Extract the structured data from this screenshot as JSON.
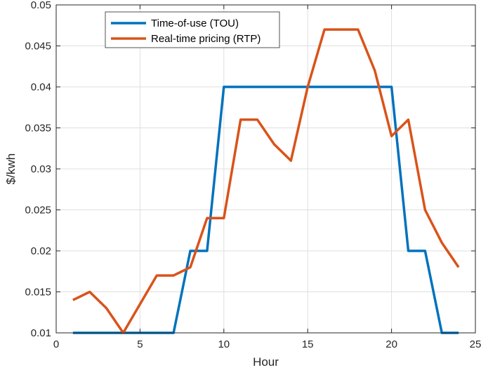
{
  "chart_data": {
    "type": "line",
    "title": "",
    "xlabel": "Hour",
    "ylabel": "$/kwh",
    "xlim": [
      0,
      25
    ],
    "ylim": [
      0.01,
      0.05
    ],
    "xticks": [
      0,
      5,
      10,
      15,
      20,
      25
    ],
    "xtick_labels": [
      "0",
      "5",
      "10",
      "15",
      "20",
      "25"
    ],
    "yticks": [
      0.01,
      0.015,
      0.02,
      0.025,
      0.03,
      0.035,
      0.04,
      0.045,
      0.05
    ],
    "ytick_labels": [
      "0.01",
      "0.015",
      "0.02",
      "0.025",
      "0.03",
      "0.035",
      "0.04",
      "0.045",
      "0.05"
    ],
    "grid": true,
    "legend_position": "top-left",
    "series": [
      {
        "name": "Time-of-use (TOU)",
        "color": "#0072BD",
        "x": [
          1,
          2,
          3,
          4,
          5,
          6,
          7,
          8,
          9,
          10,
          11,
          12,
          13,
          14,
          15,
          16,
          17,
          18,
          19,
          20,
          21,
          22,
          23,
          24
        ],
        "y": [
          0.01,
          0.01,
          0.01,
          0.01,
          0.01,
          0.01,
          0.01,
          0.02,
          0.02,
          0.04,
          0.04,
          0.04,
          0.04,
          0.04,
          0.04,
          0.04,
          0.04,
          0.04,
          0.04,
          0.04,
          0.02,
          0.02,
          0.01,
          0.01
        ]
      },
      {
        "name": "Real-time pricing (RTP)",
        "color": "#D95319",
        "x": [
          1,
          2,
          3,
          4,
          5,
          6,
          7,
          8,
          9,
          10,
          11,
          12,
          13,
          14,
          15,
          16,
          17,
          18,
          19,
          20,
          21,
          22,
          23,
          24
        ],
        "y": [
          0.014,
          0.015,
          0.013,
          0.01,
          0.0135,
          0.017,
          0.017,
          0.018,
          0.024,
          0.024,
          0.036,
          0.036,
          0.033,
          0.031,
          0.04,
          0.047,
          0.047,
          0.047,
          0.042,
          0.034,
          0.036,
          0.025,
          0.021,
          0.018
        ]
      }
    ]
  }
}
